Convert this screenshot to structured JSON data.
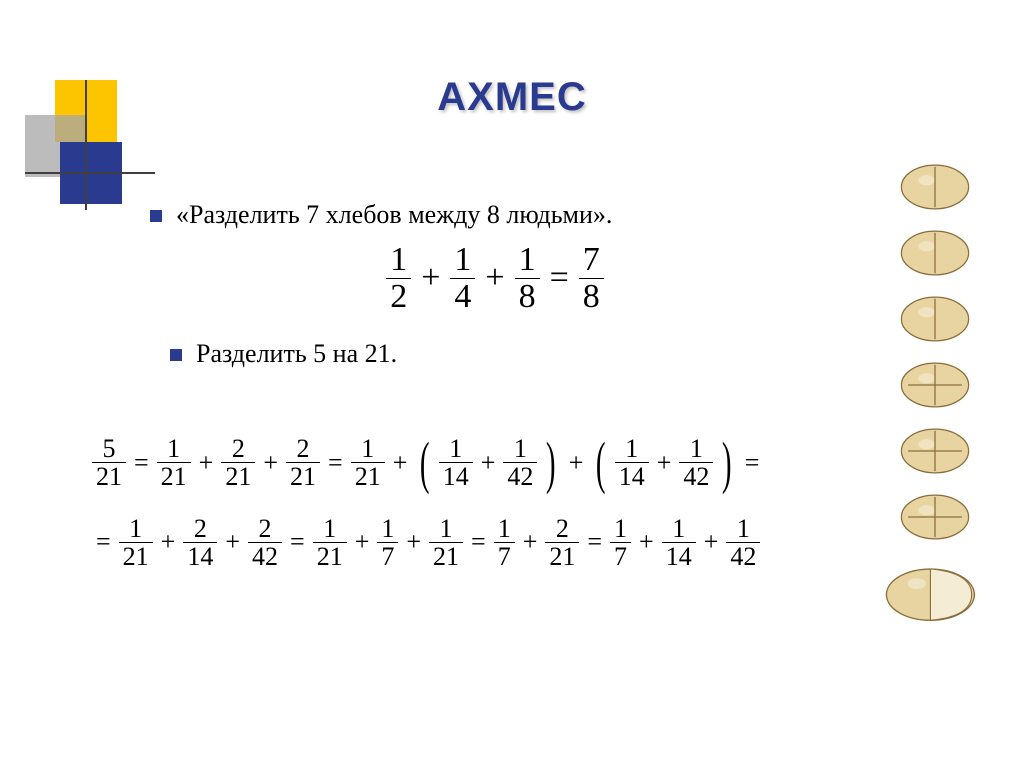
{
  "title": "АХМЕС",
  "bullets": [
    "«Разделить 7 хлебов между 8 людьми».",
    "Разделить 5 на 21."
  ],
  "equation1": {
    "terms": [
      {
        "n": "1",
        "d": "2"
      },
      {
        "op": "+"
      },
      {
        "n": "1",
        "d": "4"
      },
      {
        "op": "+"
      },
      {
        "n": "1",
        "d": "8"
      },
      {
        "op": "="
      },
      {
        "n": "7",
        "d": "8"
      }
    ]
  },
  "equation2_line1": [
    {
      "n": "5",
      "d": "21"
    },
    {
      "op": "="
    },
    {
      "n": "1",
      "d": "21"
    },
    {
      "op": "+"
    },
    {
      "n": "2",
      "d": "21"
    },
    {
      "op": "+"
    },
    {
      "n": "2",
      "d": "21"
    },
    {
      "op": "="
    },
    {
      "n": "1",
      "d": "21"
    },
    {
      "op": "+"
    },
    {
      "paren": "("
    },
    {
      "n": "1",
      "d": "14"
    },
    {
      "op": "+"
    },
    {
      "n": "1",
      "d": "42"
    },
    {
      "paren": ")"
    },
    {
      "op": "+"
    },
    {
      "paren": "("
    },
    {
      "n": "1",
      "d": "14"
    },
    {
      "op": "+"
    },
    {
      "n": "1",
      "d": "42"
    },
    {
      "paren": ")"
    },
    {
      "op": "="
    }
  ],
  "equation2_line2": [
    {
      "op": "="
    },
    {
      "n": "1",
      "d": "21"
    },
    {
      "op": "+"
    },
    {
      "n": "2",
      "d": "14"
    },
    {
      "op": "+"
    },
    {
      "n": "2",
      "d": "42"
    },
    {
      "op": "="
    },
    {
      "n": "1",
      "d": "21"
    },
    {
      "op": "+"
    },
    {
      "n": "1",
      "d": "7"
    },
    {
      "op": "+"
    },
    {
      "n": "1",
      "d": "21"
    },
    {
      "op": "="
    },
    {
      "n": "1",
      "d": "7"
    },
    {
      "op": "+"
    },
    {
      "n": "2",
      "d": "21"
    },
    {
      "op": "="
    },
    {
      "n": "1",
      "d": "7"
    },
    {
      "op": "+"
    },
    {
      "n": "1",
      "d": "14"
    },
    {
      "op": "+"
    },
    {
      "n": "1",
      "d": "42"
    }
  ],
  "colors": {
    "title": "#2a3b8f",
    "bullet": "#2a3b8f",
    "deco_gold": "#fdc400",
    "deco_gray": "#a6a6a6",
    "deco_navy": "#2a3b8f",
    "bread_fill": "#e8d4a0",
    "bread_stroke": "#8a6d3b",
    "bread_cut_face": "#f5ecd6"
  },
  "bread_count": 7
}
